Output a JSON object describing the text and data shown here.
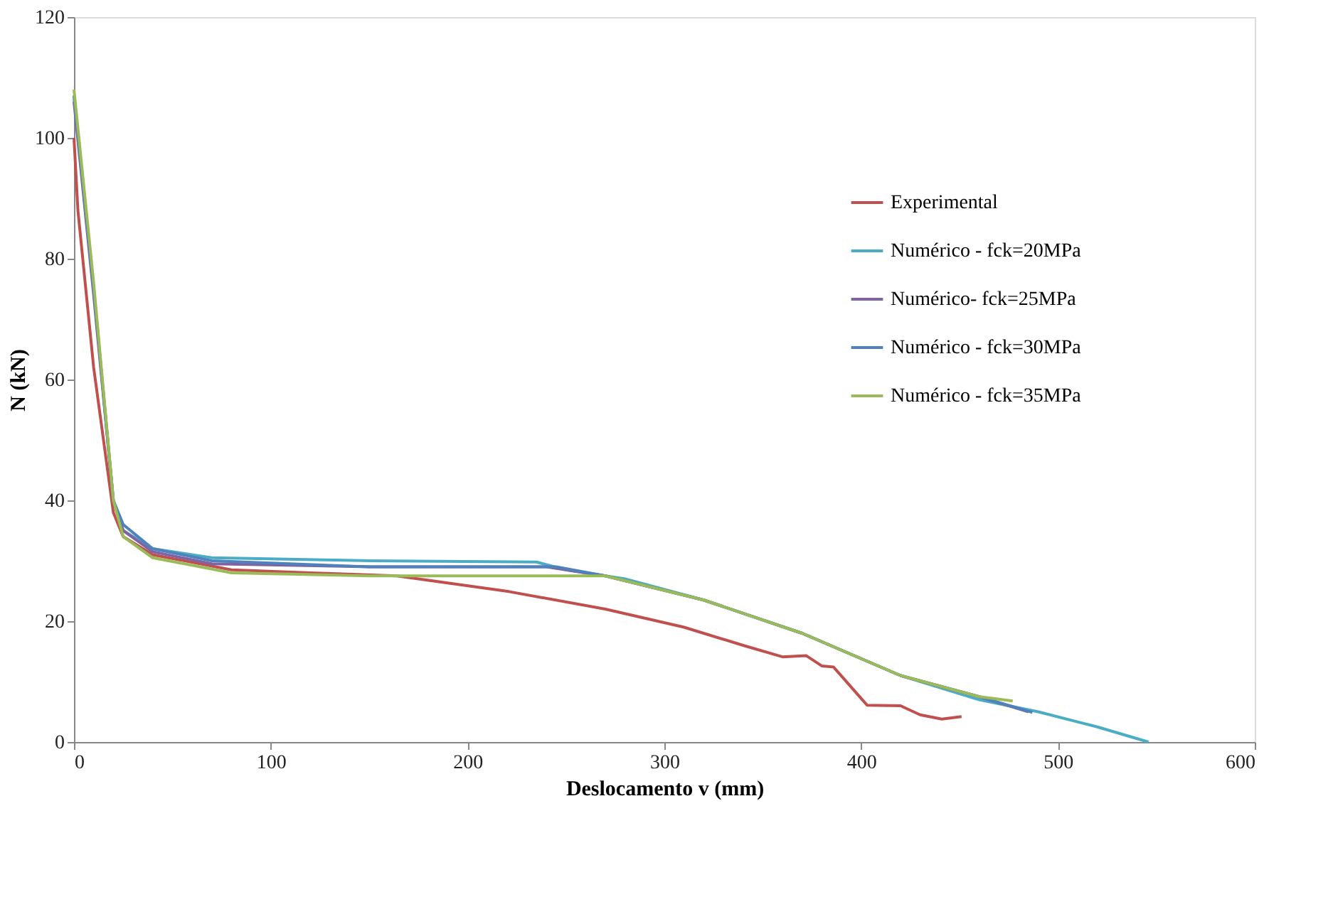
{
  "chart_data": {
    "type": "line",
    "xlabel": "Deslocamento v (mm)",
    "ylabel": "N (kN)",
    "xlim": [
      0,
      600
    ],
    "ylim": [
      0,
      120
    ],
    "xticks": [
      0,
      100,
      200,
      300,
      400,
      500,
      600
    ],
    "yticks": [
      0,
      20,
      40,
      60,
      80,
      100,
      120
    ],
    "grid": false,
    "legend": "right",
    "marker": "none",
    "line_style": "solid",
    "series": [
      {
        "name": "Experimental",
        "color": "#c0504d",
        "x": [
          0,
          2,
          10,
          20,
          25,
          40,
          80,
          120,
          164,
          221,
          270,
          310,
          340,
          360,
          372,
          380,
          386,
          403,
          420,
          430,
          441,
          451
        ],
        "values": [
          100,
          88,
          62,
          38,
          34,
          31,
          28.5,
          28,
          27.5,
          24.9,
          22,
          19,
          16,
          14.1,
          14.3,
          12.6,
          12.4,
          6.1,
          6,
          4.5,
          3.8,
          4.2
        ]
      },
      {
        "name": "Numérico - fck=20MPa",
        "color": "#4bacc6",
        "x": [
          0,
          10,
          20,
          25,
          40,
          70,
          150,
          235,
          250,
          280,
          320,
          370,
          420,
          460,
          490,
          520,
          546
        ],
        "values": [
          107,
          75,
          40,
          35,
          32,
          30.5,
          30,
          29.8,
          28.5,
          27,
          23.5,
          18,
          11,
          7,
          5,
          2.5,
          0
        ]
      },
      {
        "name": "Numérico- fck=25MPa",
        "color": "#8064a2",
        "x": [
          0,
          10,
          20,
          25,
          40,
          70,
          150,
          240,
          270,
          320,
          370,
          420,
          460,
          485
        ],
        "values": [
          106,
          74,
          40,
          35,
          31.5,
          29.5,
          29,
          29,
          27.5,
          23.5,
          18,
          11,
          7.5,
          5
        ]
      },
      {
        "name": "Numérico - fck=30MPa",
        "color": "#4f81bd",
        "x": [
          0,
          10,
          20,
          25,
          40,
          70,
          150,
          245,
          270,
          320,
          370,
          420,
          460,
          487
        ],
        "values": [
          107,
          75,
          40,
          36,
          32,
          30,
          29,
          29,
          27.5,
          23.5,
          18,
          11,
          7.5,
          4.9
        ]
      },
      {
        "name": "Numérico - fck=35MPa",
        "color": "#9bbb59",
        "x": [
          0,
          10,
          20,
          25,
          40,
          80,
          150,
          270,
          320,
          370,
          420,
          460,
          477
        ],
        "values": [
          108,
          76,
          40,
          34,
          30.5,
          28,
          27.5,
          27.5,
          23.5,
          18,
          11,
          7.5,
          6.8
        ]
      }
    ]
  }
}
